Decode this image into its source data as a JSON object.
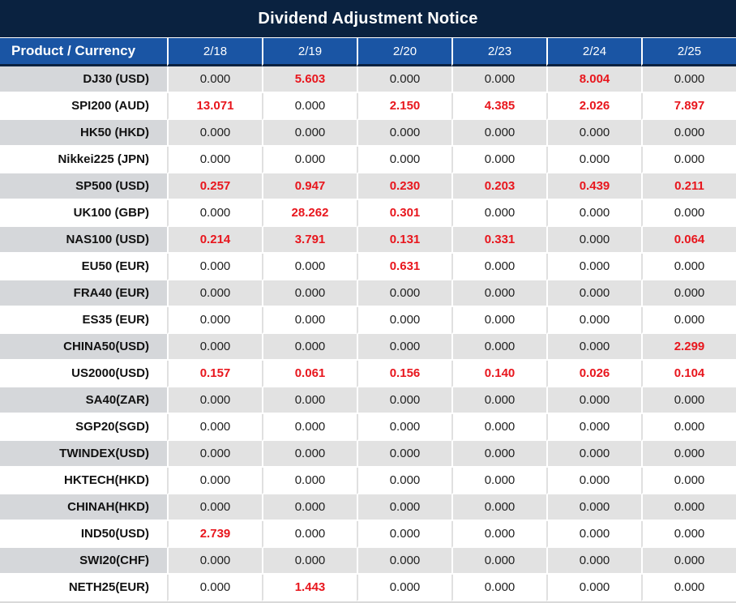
{
  "title": "Dividend Adjustment Notice",
  "colors": {
    "title_bar_navy": "#0a2240",
    "header_blue": "#1a55a4",
    "value_red": "#e8161d",
    "row_gray": "#e2e2e2",
    "product_cell_gray": "#d5d7da",
    "text_black": "#1f1f1f"
  },
  "chart_data": {
    "type": "table",
    "title": "Dividend Adjustment Notice",
    "product_column_header": "Product / Currency",
    "date_columns": [
      "2/18",
      "2/19",
      "2/20",
      "2/23",
      "2/24",
      "2/25"
    ],
    "rows": [
      {
        "product": "DJ30 (USD)",
        "values": [
          "0.000",
          "5.603",
          "0.000",
          "0.000",
          "8.004",
          "0.000"
        ],
        "red": [
          false,
          true,
          false,
          false,
          true,
          false
        ]
      },
      {
        "product": "SPI200 (AUD)",
        "values": [
          "13.071",
          "0.000",
          "2.150",
          "4.385",
          "2.026",
          "7.897"
        ],
        "red": [
          true,
          false,
          true,
          true,
          true,
          true
        ]
      },
      {
        "product": "HK50 (HKD)",
        "values": [
          "0.000",
          "0.000",
          "0.000",
          "0.000",
          "0.000",
          "0.000"
        ],
        "red": [
          false,
          false,
          false,
          false,
          false,
          false
        ]
      },
      {
        "product": "Nikkei225 (JPN)",
        "values": [
          "0.000",
          "0.000",
          "0.000",
          "0.000",
          "0.000",
          "0.000"
        ],
        "red": [
          false,
          false,
          false,
          false,
          false,
          false
        ]
      },
      {
        "product": "SP500 (USD)",
        "values": [
          "0.257",
          "0.947",
          "0.230",
          "0.203",
          "0.439",
          "0.211"
        ],
        "red": [
          true,
          true,
          true,
          true,
          true,
          true
        ]
      },
      {
        "product": "UK100 (GBP)",
        "values": [
          "0.000",
          "28.262",
          "0.301",
          "0.000",
          "0.000",
          "0.000"
        ],
        "red": [
          false,
          true,
          true,
          false,
          false,
          false
        ]
      },
      {
        "product": "NAS100 (USD)",
        "values": [
          "0.214",
          "3.791",
          "0.131",
          "0.331",
          "0.000",
          "0.064"
        ],
        "red": [
          true,
          true,
          true,
          true,
          false,
          true
        ]
      },
      {
        "product": "EU50 (EUR)",
        "values": [
          "0.000",
          "0.000",
          "0.631",
          "0.000",
          "0.000",
          "0.000"
        ],
        "red": [
          false,
          false,
          true,
          false,
          false,
          false
        ]
      },
      {
        "product": "FRA40 (EUR)",
        "values": [
          "0.000",
          "0.000",
          "0.000",
          "0.000",
          "0.000",
          "0.000"
        ],
        "red": [
          false,
          false,
          false,
          false,
          false,
          false
        ]
      },
      {
        "product": "ES35 (EUR)",
        "values": [
          "0.000",
          "0.000",
          "0.000",
          "0.000",
          "0.000",
          "0.000"
        ],
        "red": [
          false,
          false,
          false,
          false,
          false,
          false
        ]
      },
      {
        "product": "CHINA50(USD)",
        "values": [
          "0.000",
          "0.000",
          "0.000",
          "0.000",
          "0.000",
          "2.299"
        ],
        "red": [
          false,
          false,
          false,
          false,
          false,
          true
        ]
      },
      {
        "product": "US2000(USD)",
        "values": [
          "0.157",
          "0.061",
          "0.156",
          "0.140",
          "0.026",
          "0.104"
        ],
        "red": [
          true,
          true,
          true,
          true,
          true,
          true
        ]
      },
      {
        "product": "SA40(ZAR)",
        "values": [
          "0.000",
          "0.000",
          "0.000",
          "0.000",
          "0.000",
          "0.000"
        ],
        "red": [
          false,
          false,
          false,
          false,
          false,
          false
        ]
      },
      {
        "product": "SGP20(SGD)",
        "values": [
          "0.000",
          "0.000",
          "0.000",
          "0.000",
          "0.000",
          "0.000"
        ],
        "red": [
          false,
          false,
          false,
          false,
          false,
          false
        ]
      },
      {
        "product": "TWINDEX(USD)",
        "values": [
          "0.000",
          "0.000",
          "0.000",
          "0.000",
          "0.000",
          "0.000"
        ],
        "red": [
          false,
          false,
          false,
          false,
          false,
          false
        ]
      },
      {
        "product": "HKTECH(HKD)",
        "values": [
          "0.000",
          "0.000",
          "0.000",
          "0.000",
          "0.000",
          "0.000"
        ],
        "red": [
          false,
          false,
          false,
          false,
          false,
          false
        ]
      },
      {
        "product": "CHINAH(HKD)",
        "values": [
          "0.000",
          "0.000",
          "0.000",
          "0.000",
          "0.000",
          "0.000"
        ],
        "red": [
          false,
          false,
          false,
          false,
          false,
          false
        ]
      },
      {
        "product": "IND50(USD)",
        "values": [
          "2.739",
          "0.000",
          "0.000",
          "0.000",
          "0.000",
          "0.000"
        ],
        "red": [
          true,
          false,
          false,
          false,
          false,
          false
        ]
      },
      {
        "product": "SWI20(CHF)",
        "values": [
          "0.000",
          "0.000",
          "0.000",
          "0.000",
          "0.000",
          "0.000"
        ],
        "red": [
          false,
          false,
          false,
          false,
          false,
          false
        ]
      },
      {
        "product": "NETH25(EUR)",
        "values": [
          "0.000",
          "1.443",
          "0.000",
          "0.000",
          "0.000",
          "0.000"
        ],
        "red": [
          false,
          true,
          false,
          false,
          false,
          false
        ]
      }
    ]
  }
}
